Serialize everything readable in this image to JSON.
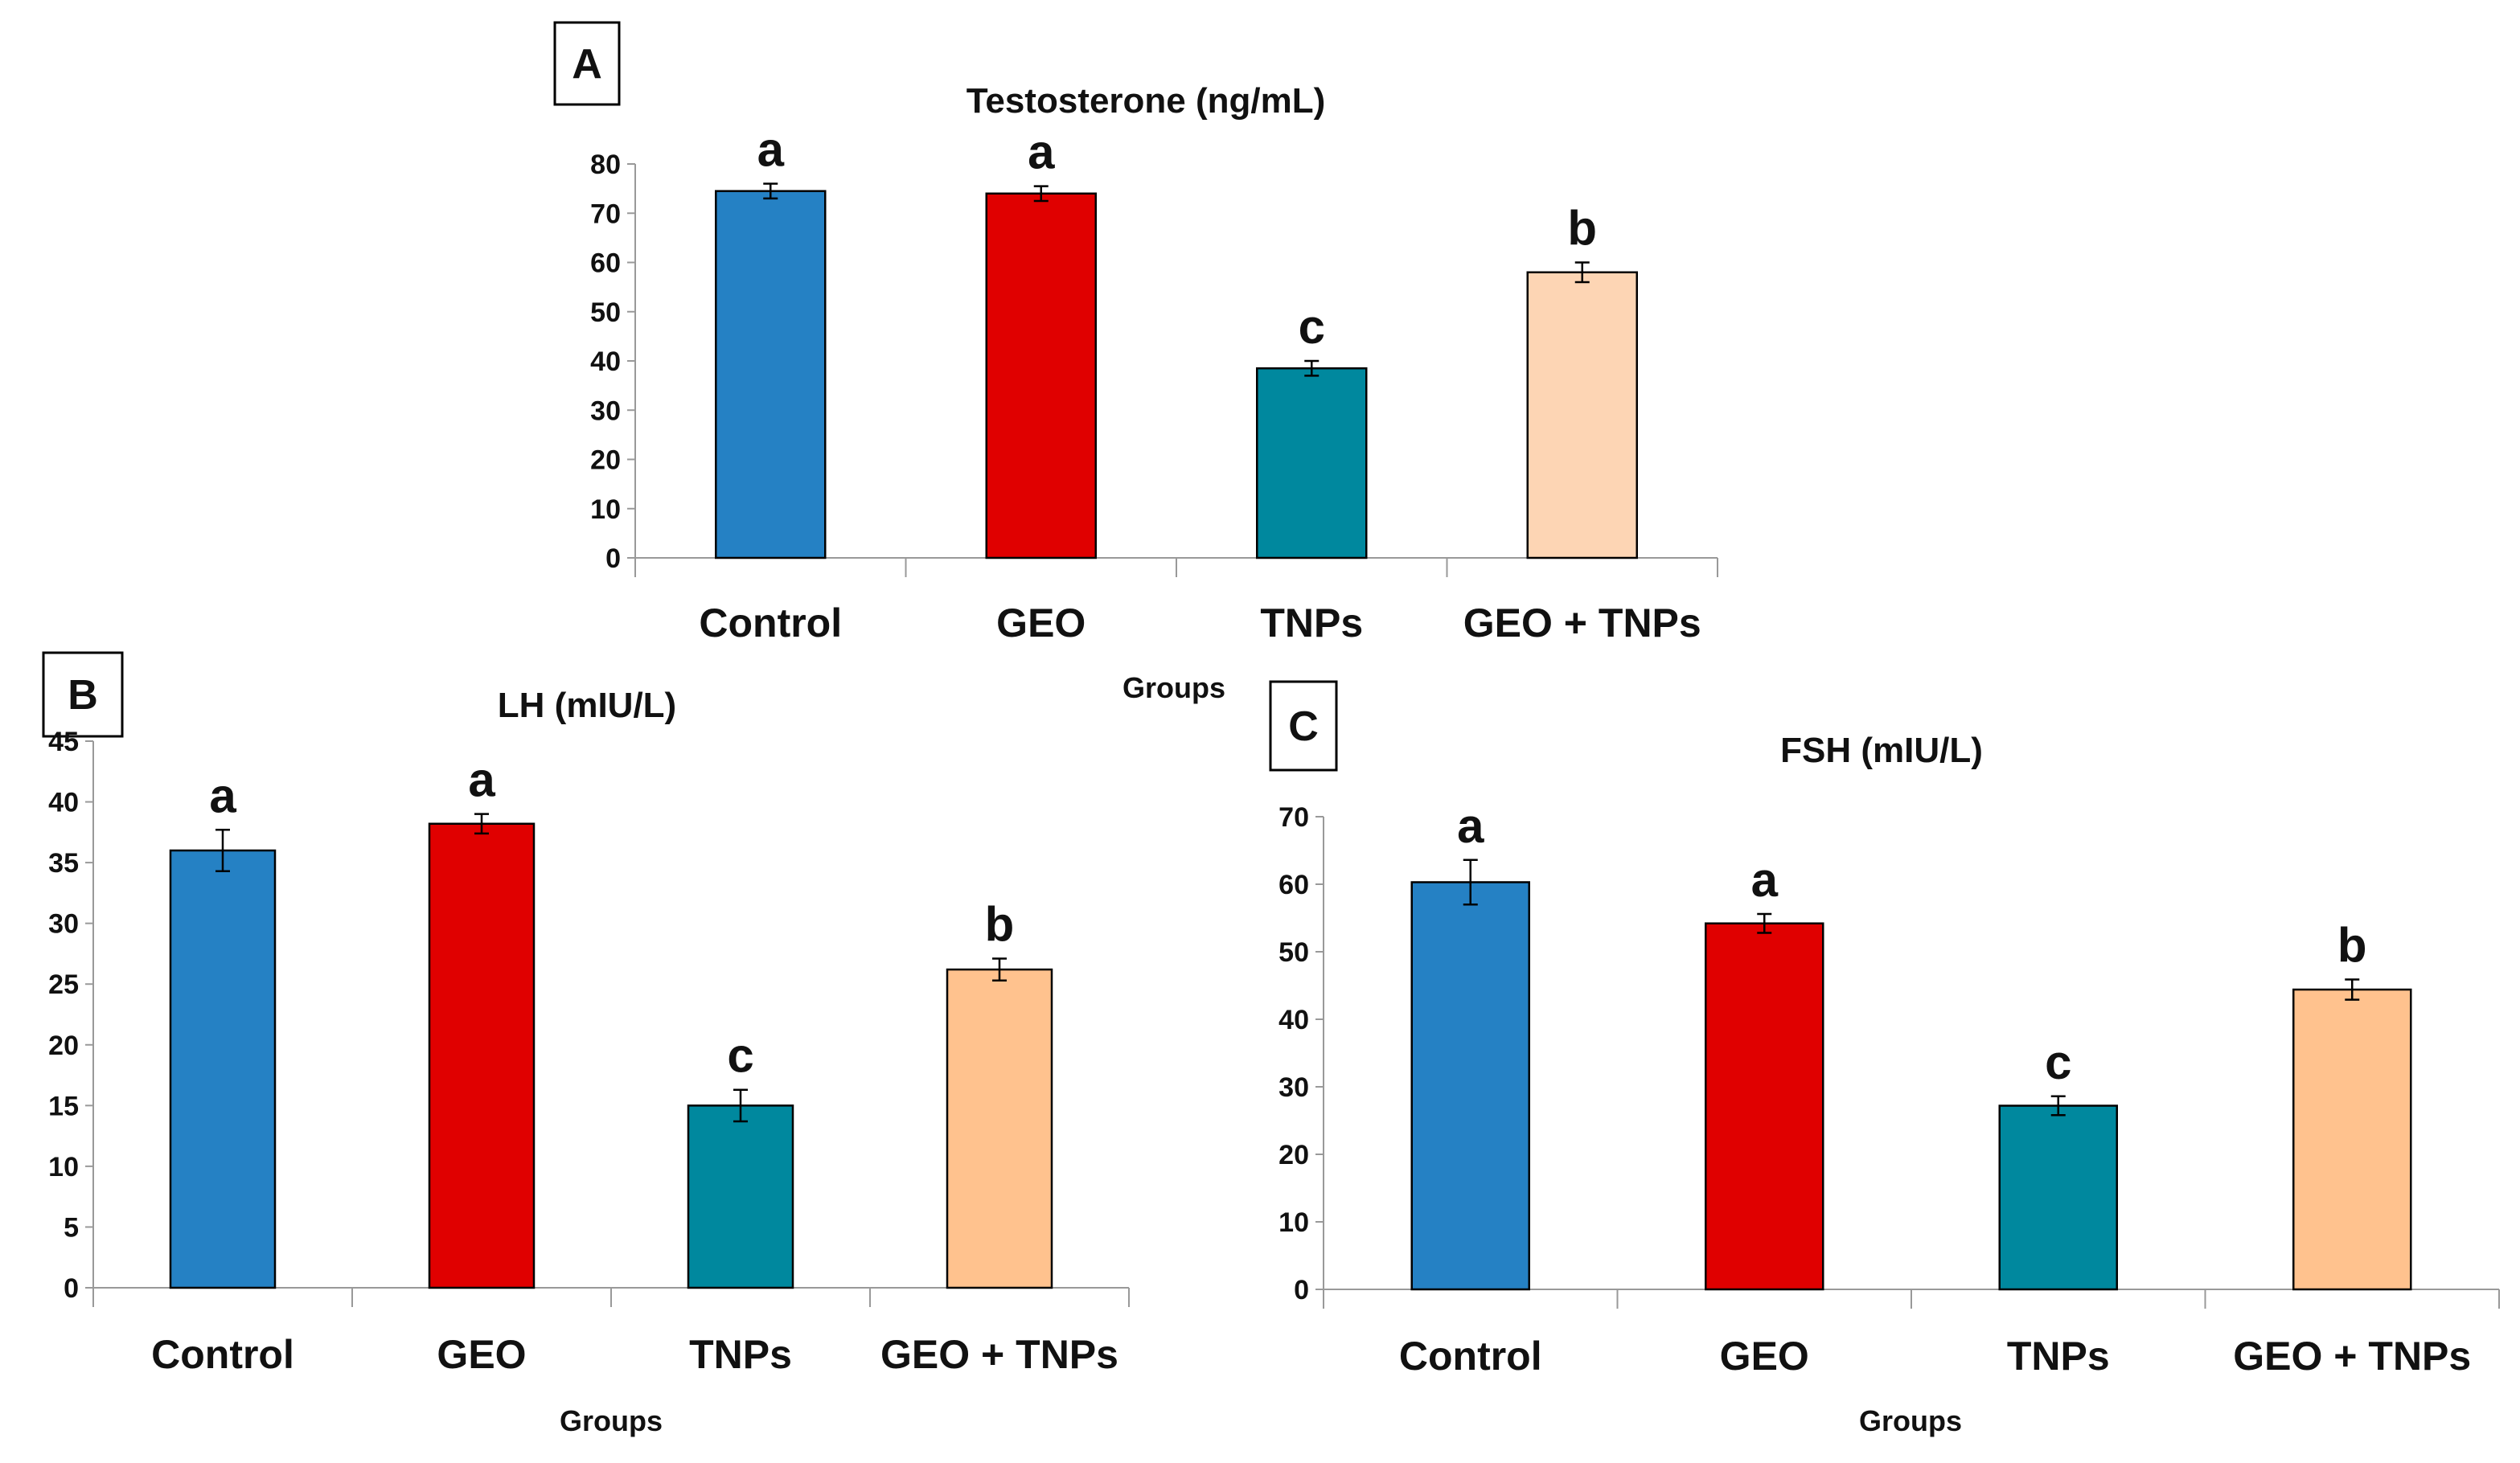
{
  "chart_data": [
    {
      "type": "bar",
      "panel": "A",
      "title": "Testosterone (ng/mL)",
      "xlabel": "Groups",
      "ylabel": "",
      "ylim": [
        0,
        80
      ],
      "ytick_step": 10,
      "categories": [
        "Control",
        "GEO",
        "TNPs",
        "GEO + TNPs"
      ],
      "values": [
        74.5,
        74.0,
        38.5,
        58.0
      ],
      "errors": [
        1.5,
        1.5,
        1.5,
        2.0
      ],
      "significance": [
        "a",
        "a",
        "c",
        "b"
      ],
      "colors": [
        "#2581C4",
        "#E00000",
        "#00889E",
        "#FDD5B4"
      ],
      "grid": false
    },
    {
      "type": "bar",
      "panel": "B",
      "title": "LH (mIU/L)",
      "xlabel": "Groups",
      "ylabel": "",
      "ylim": [
        0,
        45
      ],
      "ytick_step": 5,
      "categories": [
        "Control",
        "GEO",
        "TNPs",
        "GEO + TNPs"
      ],
      "values": [
        36.0,
        38.2,
        15.0,
        26.2
      ],
      "errors": [
        1.7,
        0.8,
        1.3,
        0.9
      ],
      "significance": [
        "a",
        "a",
        "c",
        "b"
      ],
      "colors": [
        "#2581C4",
        "#E00000",
        "#00889E",
        "#FFC28E"
      ],
      "grid": false
    },
    {
      "type": "bar",
      "panel": "C",
      "title": "FSH (mIU/L)",
      "xlabel": "Groups",
      "ylabel": "",
      "ylim": [
        0,
        70
      ],
      "ytick_step": 10,
      "categories": [
        "Control",
        "GEO",
        "TNPs",
        "GEO + TNPs"
      ],
      "values": [
        60.3,
        54.2,
        27.2,
        44.4
      ],
      "errors": [
        3.3,
        1.4,
        1.4,
        1.5
      ],
      "significance": [
        "a",
        "a",
        "c",
        "b"
      ],
      "colors": [
        "#2581C4",
        "#E00000",
        "#00889E",
        "#FFC28E"
      ],
      "grid": false
    }
  ]
}
